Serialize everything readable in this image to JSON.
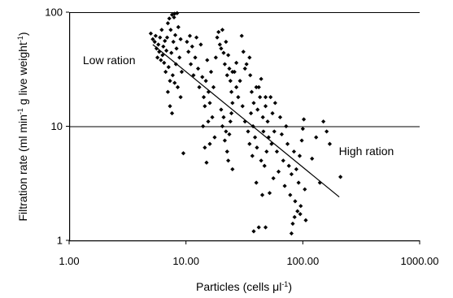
{
  "chart_data": {
    "type": "scatter",
    "title": "",
    "xlabel": "Particles (cells μl",
    "xlabel_sup": "-1",
    "xlabel_end": ")",
    "ylabel_parts": [
      "Filtration rate (ml min",
      "-1",
      " g live weight",
      "-1",
      ")"
    ],
    "x_scale": "log",
    "y_scale": "log",
    "xlim": [
      1,
      1000
    ],
    "ylim": [
      1,
      100
    ],
    "x_ticks": [
      1,
      10,
      100,
      1000
    ],
    "x_tick_labels": [
      "1.00",
      "10.00",
      "100.00",
      "1000.00"
    ],
    "y_ticks": [
      1,
      10,
      100
    ],
    "y_tick_labels": [
      "1",
      "10",
      "100"
    ],
    "gridlines_y": true,
    "annotations": [
      {
        "text": "Low ration",
        "x": 2.2,
        "y": 35
      },
      {
        "text": "High ration",
        "x": 350,
        "y": 5.6
      }
    ],
    "trendline": {
      "x": [
        5.2,
        205
      ],
      "y": [
        52,
        2.4
      ]
    },
    "series": [
      {
        "points": [
          [
            5.0,
            65
          ],
          [
            5.2,
            58
          ],
          [
            5.4,
            55
          ],
          [
            5.5,
            62
          ],
          [
            5.6,
            48
          ],
          [
            5.7,
            40
          ],
          [
            5.8,
            52
          ],
          [
            5.9,
            45
          ],
          [
            6.0,
            60
          ],
          [
            6.1,
            38
          ],
          [
            6.2,
            70
          ],
          [
            6.3,
            42
          ],
          [
            6.4,
            50
          ],
          [
            6.5,
            36
          ],
          [
            6.6,
            56
          ],
          [
            6.7,
            30
          ],
          [
            6.8,
            46
          ],
          [
            6.9,
            60
          ],
          [
            7.0,
            80
          ],
          [
            7.1,
            33
          ],
          [
            7.2,
            88
          ],
          [
            7.3,
            25
          ],
          [
            7.4,
            70
          ],
          [
            7.5,
            44
          ],
          [
            7.6,
            95
          ],
          [
            7.7,
            28
          ],
          [
            7.8,
            55
          ],
          [
            7.9,
            90
          ],
          [
            8.0,
            97
          ],
          [
            8.1,
            63
          ],
          [
            8.2,
            35
          ],
          [
            8.3,
            48
          ],
          [
            8.4,
            98
          ],
          [
            8.6,
            74
          ],
          [
            8.8,
            40
          ],
          [
            9.0,
            58
          ],
          [
            9.2,
            30
          ],
          [
            7.0,
            20
          ],
          [
            7.3,
            15
          ],
          [
            7.6,
            13
          ],
          [
            8.0,
            24
          ],
          [
            8.5,
            22
          ],
          [
            9.0,
            18
          ],
          [
            9.5,
            5.8
          ],
          [
            10.2,
            55
          ],
          [
            10.5,
            45
          ],
          [
            10.8,
            62
          ],
          [
            11.0,
            35
          ],
          [
            11.3,
            50
          ],
          [
            11.6,
            28
          ],
          [
            12.0,
            40
          ],
          [
            12.3,
            60
          ],
          [
            12.7,
            32
          ],
          [
            13.0,
            22
          ],
          [
            13.4,
            52
          ],
          [
            13.8,
            27
          ],
          [
            14.2,
            18
          ],
          [
            14.5,
            15
          ],
          [
            14.8,
            25
          ],
          [
            15.2,
            38
          ],
          [
            15.6,
            20
          ],
          [
            16.0,
            16
          ],
          [
            16.4,
            30
          ],
          [
            16.8,
            12
          ],
          [
            17.2,
            22
          ],
          [
            17.6,
            8
          ],
          [
            14.0,
            10
          ],
          [
            14.5,
            6.5
          ],
          [
            15.0,
            4.8
          ],
          [
            15.5,
            11
          ],
          [
            16.0,
            7
          ],
          [
            18.0,
            40
          ],
          [
            18.5,
            60
          ],
          [
            19.0,
            67
          ],
          [
            19.5,
            52
          ],
          [
            20.0,
            48
          ],
          [
            20.5,
            70
          ],
          [
            21.0,
            44
          ],
          [
            21.5,
            35
          ],
          [
            22.0,
            55
          ],
          [
            22.5,
            28
          ],
          [
            23.0,
            42
          ],
          [
            23.5,
            32
          ],
          [
            24.0,
            25
          ],
          [
            24.5,
            20
          ],
          [
            25.0,
            16
          ],
          [
            20.0,
            14
          ],
          [
            20.5,
            10
          ],
          [
            21.0,
            12
          ],
          [
            21.5,
            7.5
          ],
          [
            22.0,
            9
          ],
          [
            22.5,
            6
          ],
          [
            23.0,
            5
          ],
          [
            23.5,
            8.5
          ],
          [
            24.0,
            11
          ],
          [
            24.5,
            13
          ],
          [
            25.0,
            4.2
          ],
          [
            26.0,
            30
          ],
          [
            27.0,
            22
          ],
          [
            28.0,
            18
          ],
          [
            29.0,
            25
          ],
          [
            30.0,
            62
          ],
          [
            30.5,
            15
          ],
          [
            31.0,
            45
          ],
          [
            32.0,
            11
          ],
          [
            33.0,
            35
          ],
          [
            34.0,
            9
          ],
          [
            35.0,
            7
          ],
          [
            35.5,
            28
          ],
          [
            36.0,
            13
          ],
          [
            36.5,
            20
          ],
          [
            37.0,
            5.5
          ],
          [
            37.5,
            10
          ],
          [
            38.0,
            16
          ],
          [
            39.0,
            8
          ],
          [
            40.0,
            3.2
          ],
          [
            40.5,
            6.5
          ],
          [
            41.0,
            14
          ],
          [
            42.0,
            22
          ],
          [
            43.0,
            18
          ],
          [
            44.0,
            5
          ],
          [
            45.0,
            2.5
          ],
          [
            45.5,
            12
          ],
          [
            46.0,
            9
          ],
          [
            47.0,
            4.5
          ],
          [
            48.0,
            15
          ],
          [
            49.0,
            6
          ],
          [
            50.0,
            11
          ],
          [
            51.0,
            8
          ],
          [
            52.0,
            2.6
          ],
          [
            53.0,
            18
          ],
          [
            54.0,
            7
          ],
          [
            55.0,
            13
          ],
          [
            56.0,
            3.5
          ],
          [
            57.0,
            9
          ],
          [
            58.0,
            16
          ],
          [
            60.0,
            6
          ],
          [
            62.0,
            4
          ],
          [
            64.0,
            12
          ],
          [
            66.0,
            8.5
          ],
          [
            68.0,
            5
          ],
          [
            70.0,
            3
          ],
          [
            72.0,
            10
          ],
          [
            74.0,
            7
          ],
          [
            76.0,
            4.5
          ],
          [
            78.0,
            2.5
          ],
          [
            80.0,
            3.8
          ],
          [
            82.0,
            1.4
          ],
          [
            84.0,
            6
          ],
          [
            86.0,
            2.2
          ],
          [
            88.0,
            4.2
          ],
          [
            90.0,
            1.8
          ],
          [
            92.0,
            3.2
          ],
          [
            94.0,
            5.5
          ],
          [
            96.0,
            2
          ],
          [
            98.0,
            7.5
          ],
          [
            100.0,
            9.5
          ],
          [
            102.0,
            11.5
          ],
          [
            104.0,
            2.8
          ],
          [
            106.0,
            1.5
          ],
          [
            80.0,
            1.15
          ],
          [
            85.0,
            1.6
          ],
          [
            95.0,
            1.7
          ],
          [
            120.0,
            5.2
          ],
          [
            130.0,
            8
          ],
          [
            140.0,
            3.2
          ],
          [
            150.0,
            11
          ],
          [
            160.0,
            9
          ],
          [
            170.0,
            7
          ],
          [
            38.0,
            1.2
          ],
          [
            42.0,
            1.3
          ],
          [
            48.0,
            1.3
          ],
          [
            210.0,
            3.6
          ],
          [
            40.0,
            22
          ],
          [
            44.0,
            26
          ],
          [
            48.0,
            18
          ],
          [
            35.0,
            40
          ],
          [
            32.0,
            32
          ],
          [
            27.0,
            36
          ],
          [
            25.0,
            30
          ]
        ]
      }
    ]
  }
}
